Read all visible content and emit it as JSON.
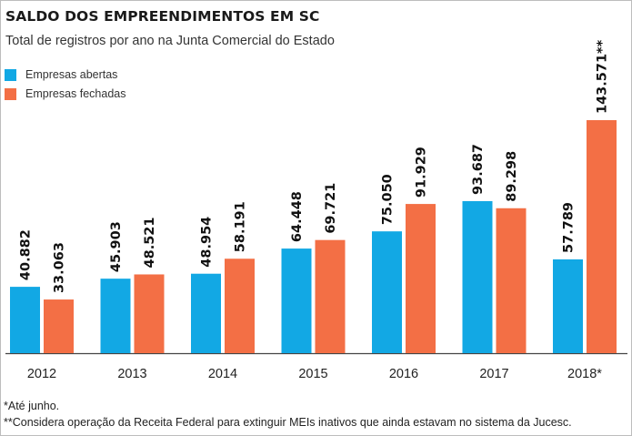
{
  "title": "SALDO DOS EMPREENDIMENTOS EM SC",
  "subtitle": "Total de registros por ano na Junta Comercial do Estado",
  "legend": [
    {
      "label": "Empresas abertas",
      "color": "#12a8e4"
    },
    {
      "label": "Empresas fechadas",
      "color": "#f36f45"
    }
  ],
  "footnotes": {
    "note1": "*Até junho.",
    "note2": "**Considera operação da Receita Federal para extinguir MEIs inativos que ainda estavam no sistema da Jucesc."
  },
  "chart_data": {
    "type": "bar",
    "categories": [
      "2012",
      "2013",
      "2014",
      "2015",
      "2016",
      "2017",
      "2018*"
    ],
    "series": [
      {
        "name": "Empresas abertas",
        "color": "#12a8e4",
        "values": [
          40882,
          45903,
          48954,
          64448,
          75050,
          93687,
          57789
        ],
        "labels": [
          "40.882",
          "45.903",
          "48.954",
          "64.448",
          "75.050",
          "93.687",
          "57.789"
        ]
      },
      {
        "name": "Empresas fechadas",
        "color": "#f36f45",
        "values": [
          33063,
          48521,
          58191,
          69721,
          91929,
          89298,
          143571
        ],
        "labels": [
          "33.063",
          "48.521",
          "58.191",
          "69.721",
          "91.929",
          "89.298",
          "143.571**"
        ]
      }
    ],
    "grid": false,
    "legend_position": "top-left"
  }
}
